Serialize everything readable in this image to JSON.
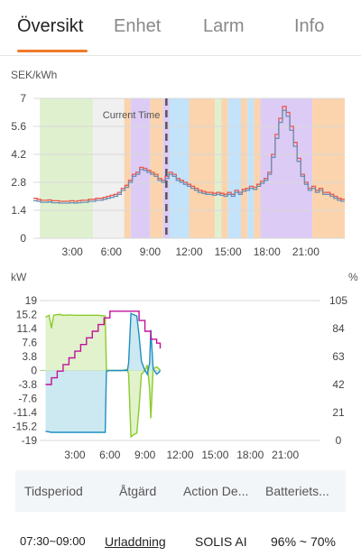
{
  "tabs": [
    {
      "label": "Översikt",
      "active": true
    },
    {
      "label": "Enhet",
      "active": false
    },
    {
      "label": "Larm",
      "active": false
    },
    {
      "label": "Info",
      "active": false
    }
  ],
  "colors": {
    "accent": "#f07a2a",
    "band_green": "#dff0cf",
    "band_gray": "#f0f0f0",
    "band_orange": "#fbd4ad",
    "band_purple": "#dccbf5",
    "band_blue": "#c3e3fb",
    "price_red": "#e8584f",
    "price_blue": "#6b8fb5",
    "soc_magenta": "#c2119a",
    "grid_green": "#8acb2a",
    "battery_blue": "#1f8fc2"
  },
  "chart_data": [
    {
      "type": "line",
      "unit_label": "SEK/kWh",
      "ylim": [
        0,
        7
      ],
      "yticks": [
        "0",
        "1.4",
        "2.8",
        "4.2",
        "5.6",
        "7"
      ],
      "xticks": [
        "3:00",
        "6:00",
        "9:00",
        "12:00",
        "15:00",
        "18:00",
        "21:00"
      ],
      "xlim_hours": [
        0,
        24
      ],
      "current_time_label": "Current Time",
      "current_time_hour": 10.25,
      "bands": [
        {
          "from": 0.5,
          "to": 4.6,
          "kind": "green"
        },
        {
          "from": 4.6,
          "to": 7.0,
          "kind": "gray"
        },
        {
          "from": 7.0,
          "to": 7.5,
          "kind": "orange"
        },
        {
          "from": 7.5,
          "to": 9.0,
          "kind": "purple"
        },
        {
          "from": 9.0,
          "to": 10.0,
          "kind": "orange"
        },
        {
          "from": 10.0,
          "to": 10.5,
          "kind": "purple"
        },
        {
          "from": 10.5,
          "to": 12.0,
          "kind": "blue"
        },
        {
          "from": 12.0,
          "to": 14.0,
          "kind": "orange"
        },
        {
          "from": 14.0,
          "to": 14.5,
          "kind": "green"
        },
        {
          "from": 14.5,
          "to": 15.0,
          "kind": "orange"
        },
        {
          "from": 15.0,
          "to": 16.0,
          "kind": "blue"
        },
        {
          "from": 16.0,
          "to": 16.5,
          "kind": "orange"
        },
        {
          "from": 16.5,
          "to": 17.0,
          "kind": "blue"
        },
        {
          "from": 17.0,
          "to": 17.5,
          "kind": "orange"
        },
        {
          "from": 17.5,
          "to": 21.5,
          "kind": "purple"
        },
        {
          "from": 21.5,
          "to": 24.0,
          "kind": "orange"
        }
      ],
      "series": [
        {
          "color": "price_red",
          "values": [
            2.0,
            1.95,
            1.9,
            1.9,
            1.92,
            1.88,
            1.88,
            1.85,
            1.85,
            1.85,
            1.88,
            1.85,
            1.88,
            1.9,
            1.9,
            1.95,
            1.95,
            2.0,
            2.0,
            2.05,
            2.1,
            2.15,
            2.2,
            2.3,
            2.5,
            2.65,
            2.9,
            3.2,
            3.3,
            3.55,
            3.5,
            3.4,
            3.3,
            3.2,
            3.0,
            2.9,
            3.1,
            3.3,
            3.2,
            3.0,
            2.9,
            2.8,
            2.7,
            2.6,
            2.5,
            2.4,
            2.35,
            2.3,
            2.3,
            2.25,
            2.3,
            2.25,
            2.2,
            2.3,
            2.2,
            2.4,
            2.3,
            2.45,
            2.5,
            2.6,
            2.55,
            2.7,
            2.85,
            3.0,
            3.3,
            4.2,
            5.2,
            6.0,
            6.6,
            6.3,
            5.6,
            4.8,
            4.0,
            3.2,
            2.8,
            2.5,
            2.6,
            2.4,
            2.5,
            2.3,
            2.3,
            2.2,
            2.1,
            2.0,
            1.95
          ]
        },
        {
          "color": "price_blue",
          "values": [
            1.88,
            1.85,
            1.8,
            1.8,
            1.82,
            1.78,
            1.78,
            1.76,
            1.76,
            1.76,
            1.78,
            1.76,
            1.78,
            1.8,
            1.8,
            1.85,
            1.85,
            1.9,
            1.9,
            1.95,
            2.0,
            2.05,
            2.1,
            2.2,
            2.4,
            2.55,
            2.8,
            3.1,
            3.2,
            3.45,
            3.4,
            3.3,
            3.2,
            3.1,
            2.9,
            2.8,
            3.0,
            3.2,
            3.1,
            2.9,
            2.8,
            2.7,
            2.6,
            2.5,
            2.4,
            2.3,
            2.25,
            2.2,
            2.2,
            2.15,
            2.2,
            2.15,
            2.1,
            2.2,
            2.1,
            2.3,
            2.2,
            2.35,
            2.4,
            2.5,
            2.45,
            2.6,
            2.75,
            2.9,
            3.2,
            4.05,
            5.0,
            5.8,
            6.4,
            6.1,
            5.4,
            4.6,
            3.85,
            3.1,
            2.7,
            2.4,
            2.5,
            2.3,
            2.4,
            2.2,
            2.2,
            2.1,
            2.0,
            1.9,
            1.85
          ]
        }
      ]
    },
    {
      "type": "line",
      "unit_left": "kW",
      "unit_right": "%",
      "ylim_left": [
        -19,
        19
      ],
      "ylim_right": [
        0,
        105
      ],
      "yticks_left": [
        "19",
        "15.2",
        "11.4",
        "7.6",
        "3.8",
        "0",
        "-3.8",
        "-7.6",
        "-11.4",
        "-15.2",
        "-19"
      ],
      "yticks_right": [
        "105",
        "84",
        "63",
        "42",
        "21",
        "0"
      ],
      "xticks": [
        "3:00",
        "6:00",
        "9:00",
        "12:00",
        "15:00",
        "18:00",
        "21:00"
      ],
      "xlim_hours": [
        0,
        24
      ],
      "series": [
        {
          "color": "grid_green",
          "axis": "left",
          "hours": [
            0.5,
            0.8,
            1.0,
            1.2,
            1.5,
            1.8,
            2.0,
            2.5,
            3.0,
            4.0,
            5.0,
            5.6,
            5.7,
            6.0,
            7.0,
            7.5,
            7.6,
            7.8,
            8.0,
            8.3,
            8.5,
            8.7,
            9.0,
            9.2,
            9.4,
            9.5,
            9.7,
            10.0,
            10.2,
            10.3
          ],
          "values": [
            14.5,
            15.0,
            11.5,
            15.0,
            15.2,
            15.2,
            15.0,
            15.1,
            15.0,
            15.0,
            15.0,
            14.8,
            0.2,
            0.0,
            0.0,
            0.3,
            -1.0,
            -18.0,
            -17.5,
            -17.0,
            -10.0,
            -1.0,
            0.0,
            1.5,
            -5.0,
            -13.0,
            0.5,
            1.0,
            0.5,
            0.0
          ]
        },
        {
          "color": "battery_blue",
          "axis": "left",
          "hours": [
            0.5,
            1.0,
            1.5,
            2.0,
            3.0,
            4.0,
            5.0,
            5.6,
            5.7,
            6.0,
            7.0,
            7.5,
            7.6,
            7.8,
            8.0,
            8.3,
            8.5,
            8.7,
            9.0,
            9.2,
            9.4,
            9.5,
            9.7,
            10.0,
            10.2,
            10.3
          ],
          "values": [
            -16.5,
            -16.8,
            -16.8,
            -16.8,
            -16.8,
            -16.8,
            -16.8,
            -16.8,
            -0.2,
            0.0,
            0.0,
            0.0,
            2.0,
            15.5,
            15.2,
            14.8,
            9.5,
            2.5,
            0.0,
            -1.0,
            2.0,
            11.0,
            0.5,
            -1.0,
            -0.5,
            0.0
          ]
        },
        {
          "color": "soc_magenta",
          "axis": "right",
          "hours": [
            0.5,
            1.0,
            1.5,
            2.0,
            2.5,
            3.0,
            3.5,
            4.0,
            4.5,
            5.0,
            5.5,
            6.0,
            6.5,
            7.0,
            7.5,
            8.0,
            8.5,
            9.0,
            9.5,
            10.0,
            10.3
          ],
          "values": [
            42,
            47,
            52,
            57,
            62,
            67,
            72,
            77,
            82,
            87,
            92,
            97,
            97,
            97,
            97,
            97,
            90,
            82,
            76,
            73,
            69
          ]
        }
      ]
    }
  ],
  "table": {
    "headers": [
      "Tidsperiod",
      "Åtgärd",
      "Action De...",
      "Batteriets..."
    ],
    "rows": [
      [
        "07:30~09:00",
        "Urladdning",
        "SOLIS AI",
        "96% ~ 70%"
      ]
    ]
  }
}
